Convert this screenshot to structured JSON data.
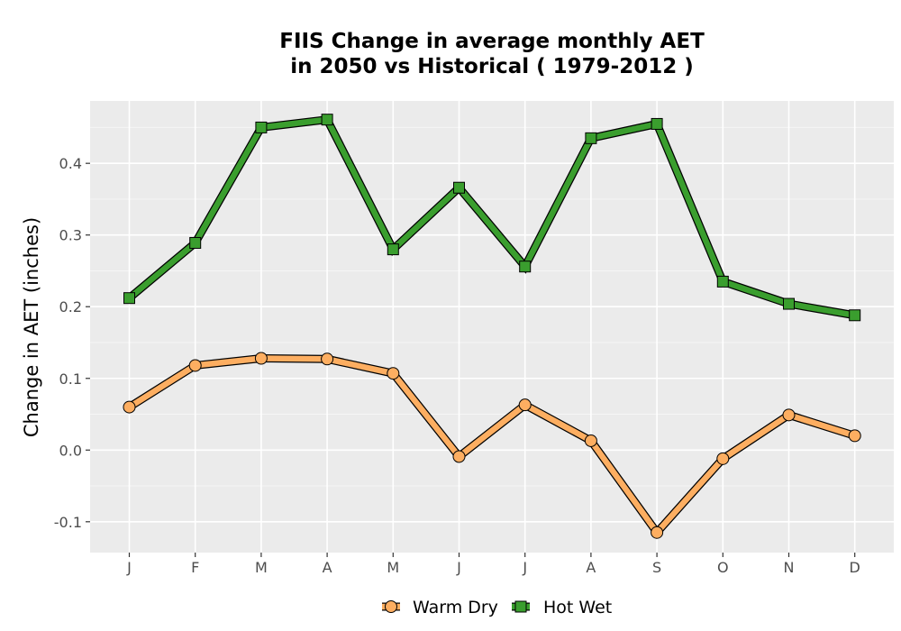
{
  "chart_data": {
    "type": "line",
    "title": "FIIS  Change in average monthly AET\nin 2050 vs Historical ( 1979-2012 )",
    "xlabel": "",
    "ylabel": "Change in AET (inches)",
    "categories": [
      "J",
      "F",
      "M",
      "A",
      "M",
      "J",
      "J",
      "A",
      "S",
      "O",
      "N",
      "D"
    ],
    "ylim": [
      -0.143,
      0.487
    ],
    "yticks": [
      -0.1,
      0.0,
      0.1,
      0.2,
      0.3,
      0.4
    ],
    "ytick_labels": [
      "-0.1",
      "0.0",
      "0.1",
      "0.2",
      "0.3",
      "0.4"
    ],
    "grid": true,
    "legend_position": "bottom",
    "series": [
      {
        "name": "Warm Dry",
        "marker": "circle",
        "color": "#fdae61",
        "values": [
          0.06,
          0.118,
          0.128,
          0.127,
          0.107,
          -0.009,
          0.063,
          0.013,
          -0.115,
          -0.012,
          0.049,
          0.02
        ]
      },
      {
        "name": "Hot Wet",
        "marker": "square",
        "color": "#3a9e2e",
        "values": [
          0.212,
          0.289,
          0.45,
          0.461,
          0.28,
          0.366,
          0.256,
          0.435,
          0.455,
          0.235,
          0.204,
          0.188
        ]
      }
    ]
  }
}
